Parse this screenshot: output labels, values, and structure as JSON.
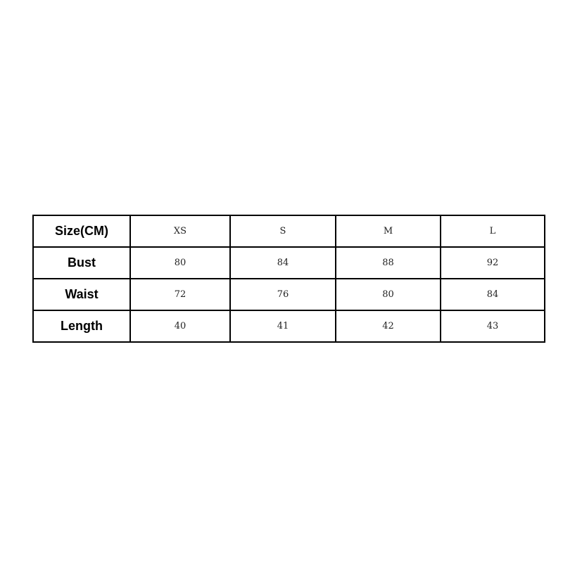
{
  "size_chart": {
    "header": [
      "Size(CM)",
      "XS",
      "S",
      "M",
      "L"
    ],
    "rows": [
      {
        "label": "Bust",
        "values": [
          "80",
          "84",
          "88",
          "92"
        ]
      },
      {
        "label": "Waist",
        "values": [
          "72",
          "76",
          "80",
          "84"
        ]
      },
      {
        "label": "Length",
        "values": [
          "40",
          "41",
          "42",
          "43"
        ]
      }
    ]
  }
}
